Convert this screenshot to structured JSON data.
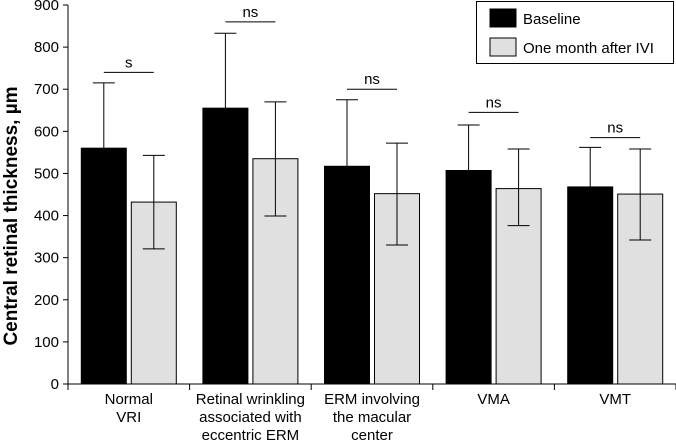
{
  "chart_data": {
    "type": "bar",
    "title": "",
    "xlabel": "",
    "ylabel": "Central retinal thickness, µm",
    "ylim": [
      0,
      900
    ],
    "yticks": [
      0,
      100,
      200,
      300,
      400,
      500,
      600,
      700,
      800,
      900
    ],
    "categories": [
      [
        "Normal",
        "VRI"
      ],
      [
        "Retinal wrinkling",
        "associated with",
        "eccentric ERM"
      ],
      [
        "ERM involving",
        "the macular",
        "center"
      ],
      [
        "VMA"
      ],
      [
        "VMT"
      ]
    ],
    "series": [
      {
        "name": "Baseline",
        "color": "#000000",
        "values": [
          560,
          655,
          517,
          507,
          468
        ],
        "err_upper": [
          715,
          833,
          675,
          615,
          562
        ],
        "err_lower": [
          560,
          655,
          517,
          507,
          468
        ]
      },
      {
        "name": "One month after IVI",
        "color": "#e0e0e0",
        "values": [
          432,
          535,
          452,
          464,
          451
        ],
        "err_upper": [
          543,
          670,
          572,
          558,
          558
        ],
        "err_lower": [
          321,
          399,
          330,
          376,
          342
        ]
      }
    ],
    "significance": [
      {
        "label": "s",
        "level": 740
      },
      {
        "label": "ns",
        "level": 860
      },
      {
        "label": "ns",
        "level": 700
      },
      {
        "label": "ns",
        "level": 645
      },
      {
        "label": "ns",
        "level": 585
      }
    ],
    "legend": {
      "position": "top-right",
      "entries": [
        "Baseline",
        "One month after IVI"
      ]
    }
  }
}
